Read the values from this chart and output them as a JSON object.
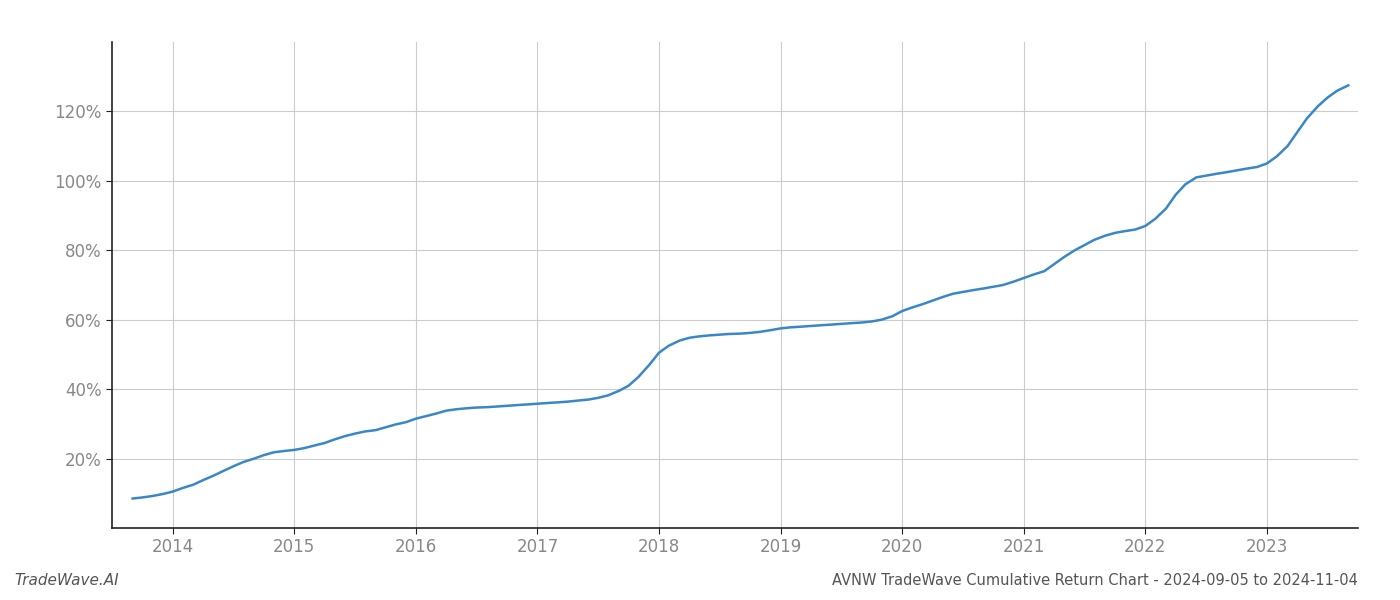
{
  "title": "AVNW TradeWave Cumulative Return Chart - 2024-09-05 to 2024-11-04",
  "watermark": "TradeWave.AI",
  "line_color": "#3a87c8",
  "background_color": "#ffffff",
  "grid_color": "#cccccc",
  "x_values": [
    2013.67,
    2013.75,
    2013.83,
    2013.92,
    2014.0,
    2014.08,
    2014.17,
    2014.25,
    2014.33,
    2014.42,
    2014.5,
    2014.58,
    2014.67,
    2014.75,
    2014.83,
    2014.92,
    2015.0,
    2015.08,
    2015.17,
    2015.25,
    2015.33,
    2015.42,
    2015.5,
    2015.58,
    2015.67,
    2015.75,
    2015.83,
    2015.92,
    2016.0,
    2016.08,
    2016.17,
    2016.25,
    2016.33,
    2016.42,
    2016.5,
    2016.58,
    2016.67,
    2016.75,
    2016.83,
    2016.92,
    2017.0,
    2017.08,
    2017.17,
    2017.25,
    2017.33,
    2017.42,
    2017.5,
    2017.58,
    2017.67,
    2017.75,
    2017.83,
    2017.92,
    2018.0,
    2018.08,
    2018.17,
    2018.25,
    2018.33,
    2018.42,
    2018.5,
    2018.58,
    2018.67,
    2018.75,
    2018.83,
    2018.92,
    2019.0,
    2019.08,
    2019.17,
    2019.25,
    2019.33,
    2019.42,
    2019.5,
    2019.58,
    2019.67,
    2019.75,
    2019.83,
    2019.92,
    2020.0,
    2020.08,
    2020.17,
    2020.25,
    2020.33,
    2020.42,
    2020.5,
    2020.58,
    2020.67,
    2020.75,
    2020.83,
    2020.92,
    2021.0,
    2021.08,
    2021.17,
    2021.25,
    2021.33,
    2021.42,
    2021.5,
    2021.58,
    2021.67,
    2021.75,
    2021.83,
    2021.92,
    2022.0,
    2022.08,
    2022.17,
    2022.25,
    2022.33,
    2022.42,
    2022.5,
    2022.58,
    2022.67,
    2022.75,
    2022.83,
    2022.92,
    2023.0,
    2023.08,
    2023.17,
    2023.25,
    2023.33,
    2023.42,
    2023.5,
    2023.58,
    2023.67
  ],
  "y_values": [
    8.5,
    8.8,
    9.2,
    9.8,
    10.5,
    11.5,
    12.5,
    13.8,
    15.0,
    16.5,
    17.8,
    19.0,
    20.0,
    21.0,
    21.8,
    22.2,
    22.5,
    23.0,
    23.8,
    24.5,
    25.5,
    26.5,
    27.2,
    27.8,
    28.2,
    29.0,
    29.8,
    30.5,
    31.5,
    32.2,
    33.0,
    33.8,
    34.2,
    34.5,
    34.7,
    34.8,
    35.0,
    35.2,
    35.4,
    35.6,
    35.8,
    36.0,
    36.2,
    36.4,
    36.7,
    37.0,
    37.5,
    38.2,
    39.5,
    41.0,
    43.5,
    47.0,
    50.5,
    52.5,
    54.0,
    54.8,
    55.2,
    55.5,
    55.7,
    55.9,
    56.0,
    56.2,
    56.5,
    57.0,
    57.5,
    57.8,
    58.0,
    58.2,
    58.4,
    58.6,
    58.8,
    59.0,
    59.2,
    59.5,
    60.0,
    61.0,
    62.5,
    63.5,
    64.5,
    65.5,
    66.5,
    67.5,
    68.0,
    68.5,
    69.0,
    69.5,
    70.0,
    71.0,
    72.0,
    73.0,
    74.0,
    76.0,
    78.0,
    80.0,
    81.5,
    83.0,
    84.2,
    85.0,
    85.5,
    86.0,
    87.0,
    89.0,
    92.0,
    96.0,
    99.0,
    101.0,
    101.5,
    102.0,
    102.5,
    103.0,
    103.5,
    104.0,
    105.0,
    107.0,
    110.0,
    114.0,
    118.0,
    121.5,
    124.0,
    126.0,
    127.5
  ],
  "xlim": [
    2013.5,
    2023.75
  ],
  "ylim": [
    0,
    140
  ],
  "yticks": [
    20,
    40,
    60,
    80,
    100,
    120
  ],
  "xticks": [
    2014,
    2015,
    2016,
    2017,
    2018,
    2019,
    2020,
    2021,
    2022,
    2023
  ],
  "tick_fontsize": 12,
  "title_fontsize": 10.5,
  "watermark_fontsize": 11,
  "line_width": 1.8
}
